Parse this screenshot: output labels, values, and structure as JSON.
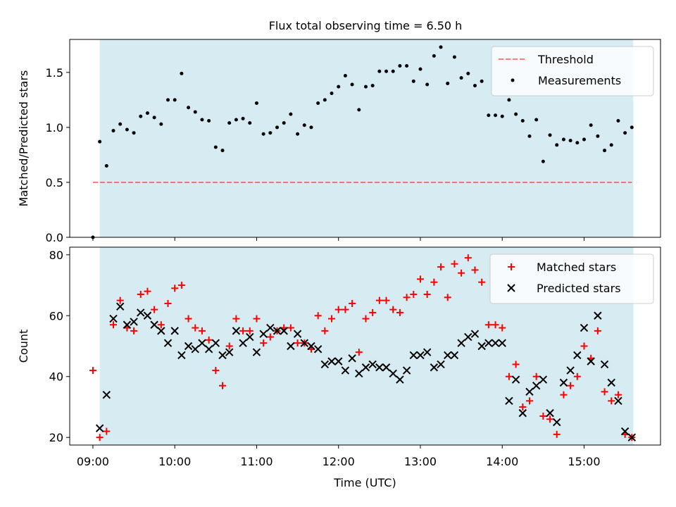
{
  "title": "Flux total observing time = 6.50 h",
  "colors": {
    "shade": "#add8e6",
    "threshold": "#ff0000",
    "matched": "#ff0000",
    "predicted": "#000000",
    "measurement": "#000000"
  },
  "chart_data": [
    {
      "type": "scatter",
      "ylabel": "Matched/Predicted stars",
      "xlabel": "",
      "xlim": [
        "08:43",
        "15:56"
      ],
      "ylim": [
        0,
        1.8
      ],
      "yticks": [
        0.0,
        0.5,
        1.0,
        1.5
      ],
      "ytick_labels": [
        "0.0",
        "0.5",
        "1.0",
        "1.5"
      ],
      "shaded_span": [
        "09:05",
        "15:36"
      ],
      "legend": [
        "Threshold",
        "Measurements"
      ],
      "legend_position": "top-right",
      "threshold": {
        "name": "Threshold",
        "y": 0.5,
        "x_range": [
          "09:00",
          "15:35"
        ]
      },
      "series": [
        {
          "name": "Measurements",
          "x": [
            "09:00",
            "09:05",
            "09:10",
            "09:15",
            "09:20",
            "09:25",
            "09:30",
            "09:35",
            "09:40",
            "09:45",
            "09:50",
            "09:55",
            "10:00",
            "10:05",
            "10:10",
            "10:15",
            "10:20",
            "10:25",
            "10:30",
            "10:35",
            "10:40",
            "10:45",
            "10:50",
            "10:55",
            "11:00",
            "11:05",
            "11:10",
            "11:15",
            "11:20",
            "11:25",
            "11:30",
            "11:35",
            "11:40",
            "11:45",
            "11:50",
            "11:55",
            "12:00",
            "12:05",
            "12:10",
            "12:15",
            "12:20",
            "12:25",
            "12:30",
            "12:35",
            "12:40",
            "12:45",
            "12:50",
            "12:55",
            "13:00",
            "13:05",
            "13:10",
            "13:15",
            "13:20",
            "13:25",
            "13:30",
            "13:35",
            "13:40",
            "13:45",
            "13:50",
            "13:55",
            "14:00",
            "14:05",
            "14:10",
            "14:15",
            "14:20",
            "14:25",
            "14:30",
            "14:35",
            "14:40",
            "14:45",
            "14:50",
            "14:55",
            "15:00",
            "15:05",
            "15:10",
            "15:15",
            "15:20",
            "15:25",
            "15:30",
            "15:35"
          ],
          "y": [
            0.0,
            0.87,
            0.65,
            0.97,
            1.03,
            0.98,
            0.95,
            1.1,
            1.13,
            1.09,
            1.03,
            1.25,
            1.25,
            1.49,
            1.18,
            1.14,
            1.07,
            1.06,
            0.82,
            0.79,
            1.04,
            1.07,
            1.08,
            1.04,
            1.22,
            0.94,
            0.95,
            1.0,
            1.04,
            1.12,
            0.94,
            1.02,
            1.0,
            1.22,
            1.25,
            1.31,
            1.37,
            1.47,
            1.39,
            1.16,
            1.37,
            1.38,
            1.51,
            1.51,
            1.51,
            1.56,
            1.56,
            1.42,
            1.53,
            1.39,
            1.65,
            1.73,
            1.4,
            1.64,
            1.45,
            1.49,
            1.38,
            1.42,
            1.11,
            1.11,
            1.1,
            1.25,
            1.12,
            1.06,
            0.92,
            1.07,
            0.69,
            0.93,
            0.84,
            0.89,
            0.88,
            0.86,
            0.89,
            1.02,
            0.92,
            0.79,
            0.84,
            1.06,
            0.95,
            1.0
          ]
        }
      ]
    },
    {
      "type": "scatter",
      "ylabel": "Count",
      "xlabel": "Time (UTC)",
      "xlim": [
        "08:43",
        "15:56"
      ],
      "ylim": [
        17.5,
        82.5
      ],
      "yticks": [
        20,
        40,
        60,
        80
      ],
      "ytick_labels": [
        "20",
        "40",
        "60",
        "80"
      ],
      "xticks": [
        "09:00",
        "10:00",
        "11:00",
        "12:00",
        "13:00",
        "14:00",
        "15:00"
      ],
      "xtick_labels": [
        "09:00",
        "10:00",
        "11:00",
        "12:00",
        "13:00",
        "14:00",
        "15:00"
      ],
      "shaded_span": [
        "09:05",
        "15:36"
      ],
      "legend": [
        "Matched stars",
        "Predicted stars"
      ],
      "legend_position": "top-right",
      "series": [
        {
          "name": "Matched stars",
          "marker": "plus",
          "x": [
            "09:00",
            "09:05",
            "09:10",
            "09:15",
            "09:20",
            "09:25",
            "09:30",
            "09:35",
            "09:40",
            "09:45",
            "09:50",
            "09:55",
            "10:00",
            "10:05",
            "10:10",
            "10:15",
            "10:20",
            "10:25",
            "10:30",
            "10:35",
            "10:40",
            "10:45",
            "10:50",
            "10:55",
            "11:00",
            "11:05",
            "11:10",
            "11:15",
            "11:20",
            "11:25",
            "11:30",
            "11:35",
            "11:40",
            "11:45",
            "11:50",
            "11:55",
            "12:00",
            "12:05",
            "12:10",
            "12:15",
            "12:20",
            "12:25",
            "12:30",
            "12:35",
            "12:40",
            "12:45",
            "12:50",
            "12:55",
            "13:00",
            "13:05",
            "13:10",
            "13:15",
            "13:20",
            "13:25",
            "13:30",
            "13:35",
            "13:40",
            "13:45",
            "13:50",
            "13:55",
            "14:00",
            "14:05",
            "14:10",
            "14:15",
            "14:20",
            "14:25",
            "14:30",
            "14:35",
            "14:40",
            "14:45",
            "14:50",
            "14:55",
            "15:00",
            "15:05",
            "15:10",
            "15:15",
            "15:20",
            "15:25",
            "15:30",
            "15:35"
          ],
          "y": [
            42,
            20,
            22,
            57,
            65,
            56,
            55,
            67,
            68,
            62,
            57,
            64,
            69,
            70,
            59,
            56,
            55,
            52,
            42,
            37,
            50,
            59,
            55,
            55,
            59,
            51,
            53,
            55,
            56,
            56,
            51,
            51,
            49,
            60,
            55,
            59,
            62,
            62,
            64,
            48,
            59,
            61,
            65,
            65,
            62,
            61,
            66,
            67,
            72,
            67,
            71,
            76,
            66,
            77,
            74,
            79,
            75,
            71,
            57,
            57,
            56,
            40,
            44,
            30,
            32,
            40,
            27,
            26,
            21,
            34,
            37,
            40,
            50,
            46,
            55,
            35,
            32,
            34,
            21,
            20
          ]
        },
        {
          "name": "Predicted stars",
          "marker": "x",
          "x": [
            "09:05",
            "09:10",
            "09:15",
            "09:20",
            "09:25",
            "09:30",
            "09:35",
            "09:40",
            "09:45",
            "09:50",
            "09:55",
            "10:00",
            "10:05",
            "10:10",
            "10:15",
            "10:20",
            "10:25",
            "10:30",
            "10:35",
            "10:40",
            "10:45",
            "10:50",
            "10:55",
            "11:00",
            "11:05",
            "11:10",
            "11:15",
            "11:20",
            "11:25",
            "11:30",
            "11:35",
            "11:40",
            "11:45",
            "11:50",
            "11:55",
            "12:00",
            "12:05",
            "12:10",
            "12:15",
            "12:20",
            "12:25",
            "12:30",
            "12:35",
            "12:40",
            "12:45",
            "12:50",
            "12:55",
            "13:00",
            "13:05",
            "13:10",
            "13:15",
            "13:20",
            "13:25",
            "13:30",
            "13:35",
            "13:40",
            "13:45",
            "13:50",
            "13:55",
            "14:00",
            "14:05",
            "14:10",
            "14:15",
            "14:20",
            "14:25",
            "14:30",
            "14:35",
            "14:40",
            "14:45",
            "14:50",
            "14:55",
            "15:00",
            "15:05",
            "15:10",
            "15:15",
            "15:20",
            "15:25",
            "15:30",
            "15:35"
          ],
          "y": [
            23,
            34,
            59,
            63,
            57,
            58,
            61,
            60,
            57,
            55,
            51,
            55,
            47,
            50,
            49,
            51,
            49,
            51,
            47,
            48,
            55,
            51,
            53,
            48,
            54,
            56,
            55,
            55,
            50,
            54,
            51,
            50,
            49,
            44,
            45,
            45,
            42,
            46,
            41,
            43,
            44,
            43,
            43,
            41,
            39,
            42,
            47,
            47,
            48,
            43,
            44,
            47,
            47,
            51,
            53,
            54,
            50,
            51,
            51,
            51,
            32,
            39,
            28,
            35,
            37,
            39,
            28,
            25,
            38,
            42,
            47,
            56,
            45,
            60,
            44,
            38,
            32,
            22,
            20
          ]
        }
      ]
    }
  ]
}
